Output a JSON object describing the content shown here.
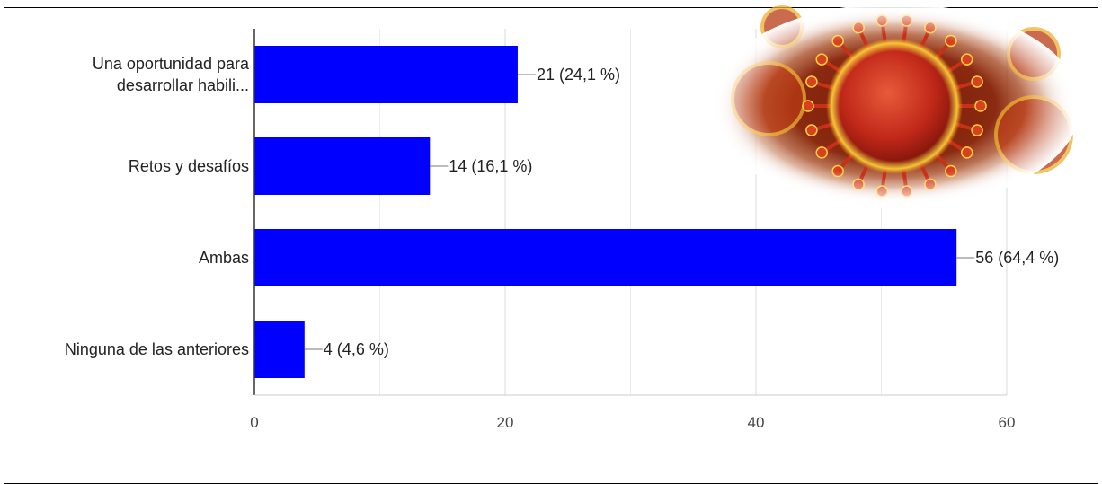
{
  "chart_data": {
    "type": "bar",
    "orientation": "horizontal",
    "categories": [
      [
        "Una oportunidad para",
        "desarrollar habili..."
      ],
      [
        "Retos y desafíos"
      ],
      [
        "Ambas"
      ],
      [
        "Ninguna de las anteriores"
      ]
    ],
    "values": [
      21,
      14,
      56,
      4
    ],
    "data_labels": [
      "21 (24,1 %)",
      "14 (16,1 %)",
      "56 (64,4 %)",
      "4 (4,6 %)"
    ],
    "x_ticks": [
      "0",
      "20",
      "40",
      "60"
    ],
    "xlim": [
      0,
      60
    ],
    "grid": true,
    "bar_color": "#0000ff",
    "decoration": "coronavirus-illustration"
  }
}
